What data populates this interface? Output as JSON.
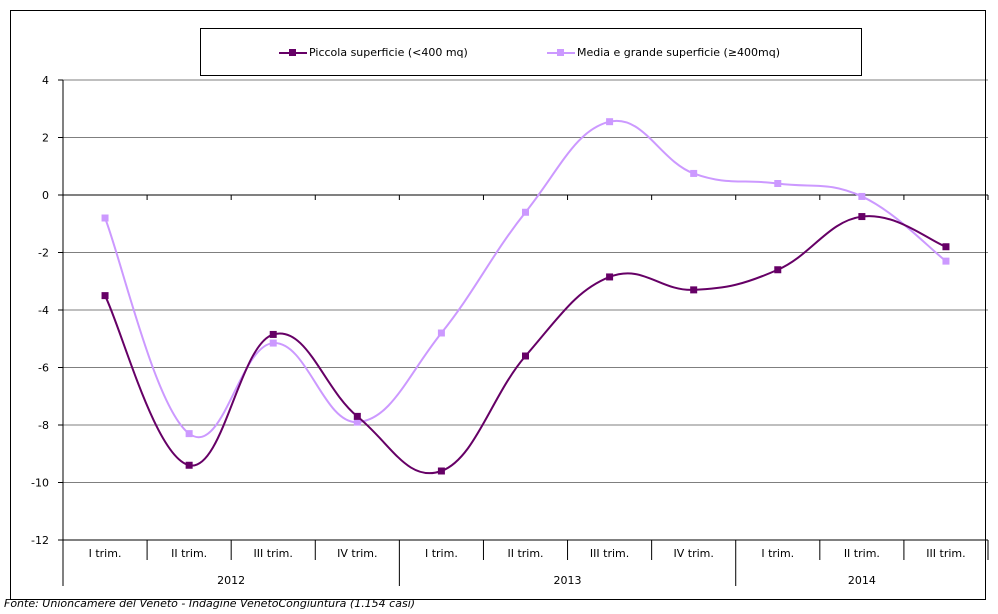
{
  "chart_data": {
    "type": "line",
    "categories": [
      "I trim.",
      "II trim.",
      "III trim.",
      "IV trim.",
      "I trim.",
      "II trim.",
      "III trim.",
      "IV trim.",
      "I trim.",
      "II trim.",
      "III trim."
    ],
    "groups": [
      {
        "label": "2012",
        "count": 4
      },
      {
        "label": "2013",
        "count": 4
      },
      {
        "label": "2014",
        "count": 3
      }
    ],
    "series": [
      {
        "name": "Piccola superficie (<400 mq)",
        "color": "#660066",
        "values": [
          -3.5,
          -9.4,
          -4.85,
          -7.7,
          -9.6,
          -5.6,
          -2.85,
          -3.3,
          -2.6,
          -0.75,
          -1.8
        ]
      },
      {
        "name": "Media e grande superficie (≥400mq)",
        "color": "#cc99ff",
        "values": [
          -0.8,
          -8.3,
          -5.15,
          -7.9,
          -4.8,
          -0.6,
          2.55,
          0.75,
          0.4,
          -0.05,
          -2.3
        ]
      }
    ],
    "ylim": [
      -12,
      4
    ],
    "yticks": [
      -12,
      -10,
      -8,
      -6,
      -4,
      -2,
      0,
      2,
      4
    ],
    "grid": true,
    "legend_position": "top",
    "title": "",
    "xlabel": "",
    "ylabel": ""
  },
  "source_note": "Fonte: Unioncamere  del Veneto - Indagine VenetoCongiuntura  (1.154 casi)"
}
